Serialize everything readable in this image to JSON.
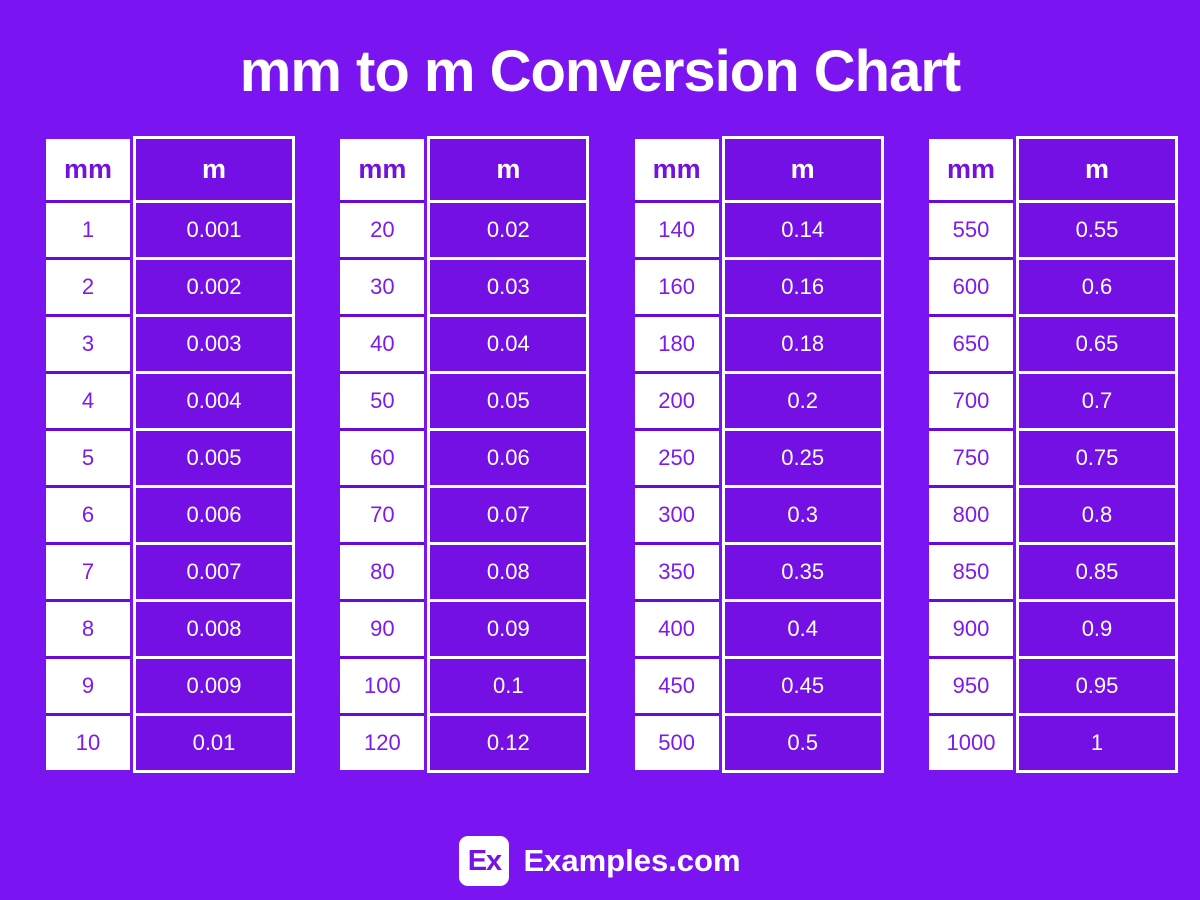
{
  "title": "mm to m Conversion Chart",
  "columns": {
    "mm": "mm",
    "m": "m"
  },
  "footer": {
    "logo_text": "Ex",
    "brand": "Examples.com"
  },
  "colors": {
    "background": "#7a14f1",
    "cell_purple": "#7410e3",
    "divider_purple": "#6d09d6",
    "text_purple": "#7e1be8",
    "white": "#ffffff"
  },
  "chart_data": {
    "type": "table",
    "title": "mm to m Conversion Chart",
    "columns": [
      "mm",
      "m"
    ],
    "tables": [
      {
        "rows": [
          [
            "1",
            "0.001"
          ],
          [
            "2",
            "0.002"
          ],
          [
            "3",
            "0.003"
          ],
          [
            "4",
            "0.004"
          ],
          [
            "5",
            "0.005"
          ],
          [
            "6",
            "0.006"
          ],
          [
            "7",
            "0.007"
          ],
          [
            "8",
            "0.008"
          ],
          [
            "9",
            "0.009"
          ],
          [
            "10",
            "0.01"
          ]
        ]
      },
      {
        "rows": [
          [
            "20",
            "0.02"
          ],
          [
            "30",
            "0.03"
          ],
          [
            "40",
            "0.04"
          ],
          [
            "50",
            "0.05"
          ],
          [
            "60",
            "0.06"
          ],
          [
            "70",
            "0.07"
          ],
          [
            "80",
            "0.08"
          ],
          [
            "90",
            "0.09"
          ],
          [
            "100",
            "0.1"
          ],
          [
            "120",
            "0.12"
          ]
        ]
      },
      {
        "rows": [
          [
            "140",
            "0.14"
          ],
          [
            "160",
            "0.16"
          ],
          [
            "180",
            "0.18"
          ],
          [
            "200",
            "0.2"
          ],
          [
            "250",
            "0.25"
          ],
          [
            "300",
            "0.3"
          ],
          [
            "350",
            "0.35"
          ],
          [
            "400",
            "0.4"
          ],
          [
            "450",
            "0.45"
          ],
          [
            "500",
            "0.5"
          ]
        ]
      },
      {
        "rows": [
          [
            "550",
            "0.55"
          ],
          [
            "600",
            "0.6"
          ],
          [
            "650",
            "0.65"
          ],
          [
            "700",
            "0.7"
          ],
          [
            "750",
            "0.75"
          ],
          [
            "800",
            "0.8"
          ],
          [
            "850",
            "0.85"
          ],
          [
            "900",
            "0.9"
          ],
          [
            "950",
            "0.95"
          ],
          [
            "1000",
            "1"
          ]
        ]
      }
    ]
  }
}
